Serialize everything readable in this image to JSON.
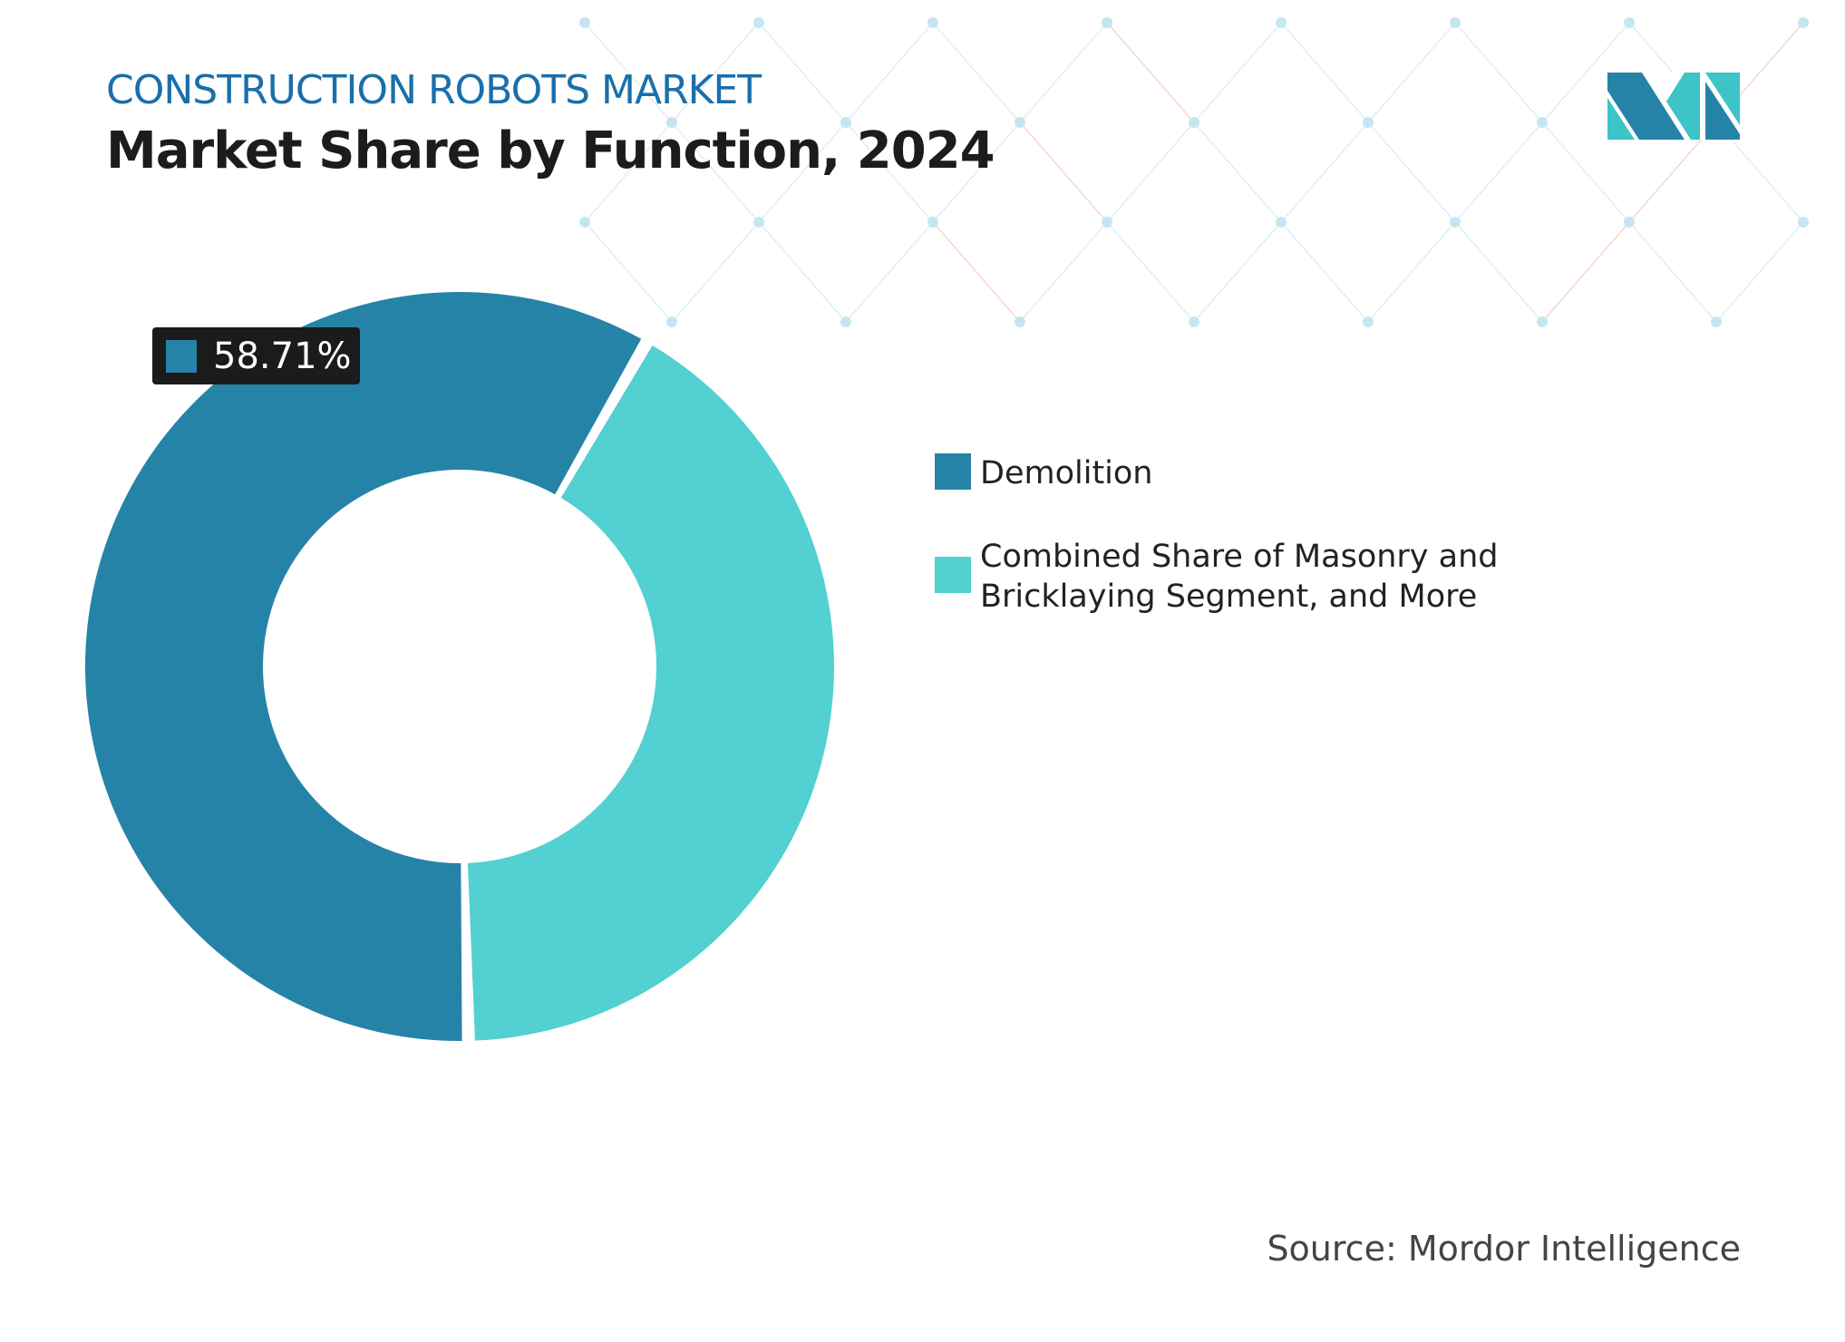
{
  "header": {
    "subtitle": "CONSTRUCTION ROBOTS MARKET",
    "title": "Market Share by Function, 2024"
  },
  "chart_data": {
    "type": "pie",
    "subtype": "donut",
    "title": "Market Share by Function, 2024",
    "series": [
      {
        "name": "Demolition",
        "value": 58.71,
        "color": "#2683a8"
      },
      {
        "name": "Combined Share of Masonry and Bricklaying Segment, and More",
        "value": 41.29,
        "color": "#52d0d2"
      }
    ],
    "data_labels": [
      "58.71%"
    ],
    "legend_position": "right"
  },
  "legend": {
    "items": [
      {
        "label": "Demolition",
        "color": "#2683a8"
      },
      {
        "label": "Combined Share of Masonry and Bricklaying Segment, and More",
        "color": "#52d0d2"
      }
    ]
  },
  "source": "Source: Mordor Intelligence",
  "logo": {
    "text": "Mordor Intelligence",
    "colors": [
      "#2683a8",
      "#3cc4c7"
    ]
  }
}
